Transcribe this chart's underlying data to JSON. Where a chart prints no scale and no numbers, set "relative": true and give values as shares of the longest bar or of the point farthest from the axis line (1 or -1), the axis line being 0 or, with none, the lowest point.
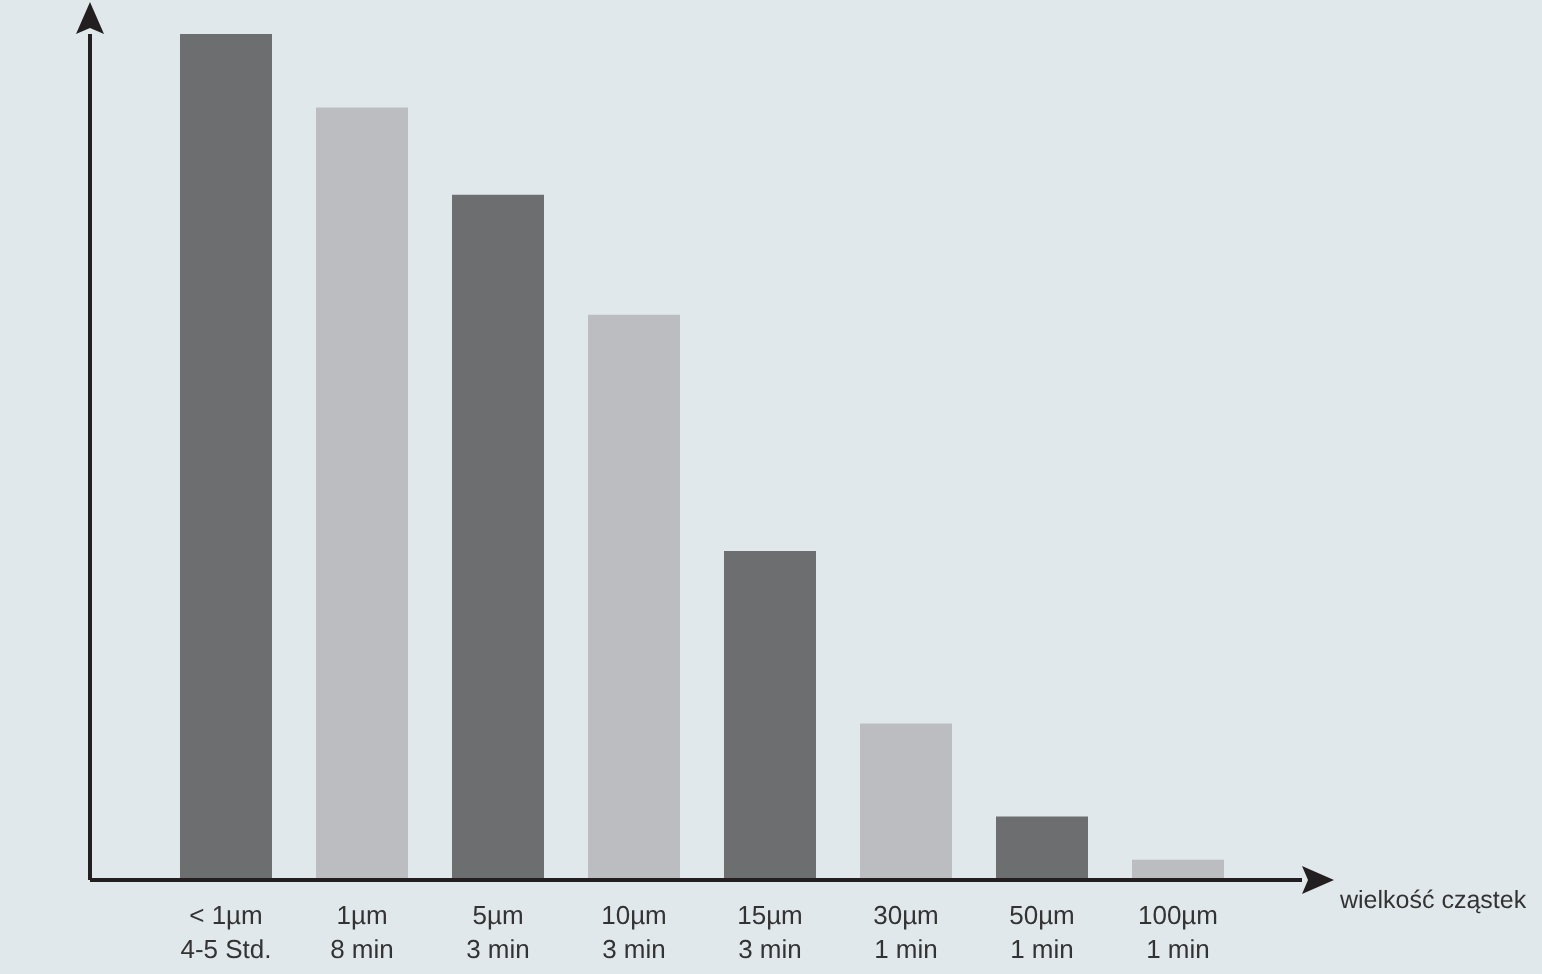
{
  "chart_data": {
    "type": "bar",
    "xlabel": "wielkość cząstek",
    "categories": [
      "< 1µm\n4-5 Std.",
      "1µm\n8 min",
      "5µm\n3 min",
      "10µm\n3 min",
      "15µm\n3 min",
      "30µm\n1 min",
      "50µm\n1 min",
      "100µm\n1 min"
    ],
    "values": [
      1,
      0.913,
      0.81,
      0.668,
      0.389,
      0.185,
      0.075,
      0.024
    ],
    "colors": [
      "#6d6e70",
      "#bcbdc1",
      "#6d6e70",
      "#bcbdc1",
      "#6d6e70",
      "#bcbdc1",
      "#6d6e70",
      "#bcbdc1"
    ],
    "relative": true,
    "grid": false,
    "legend": false
  }
}
